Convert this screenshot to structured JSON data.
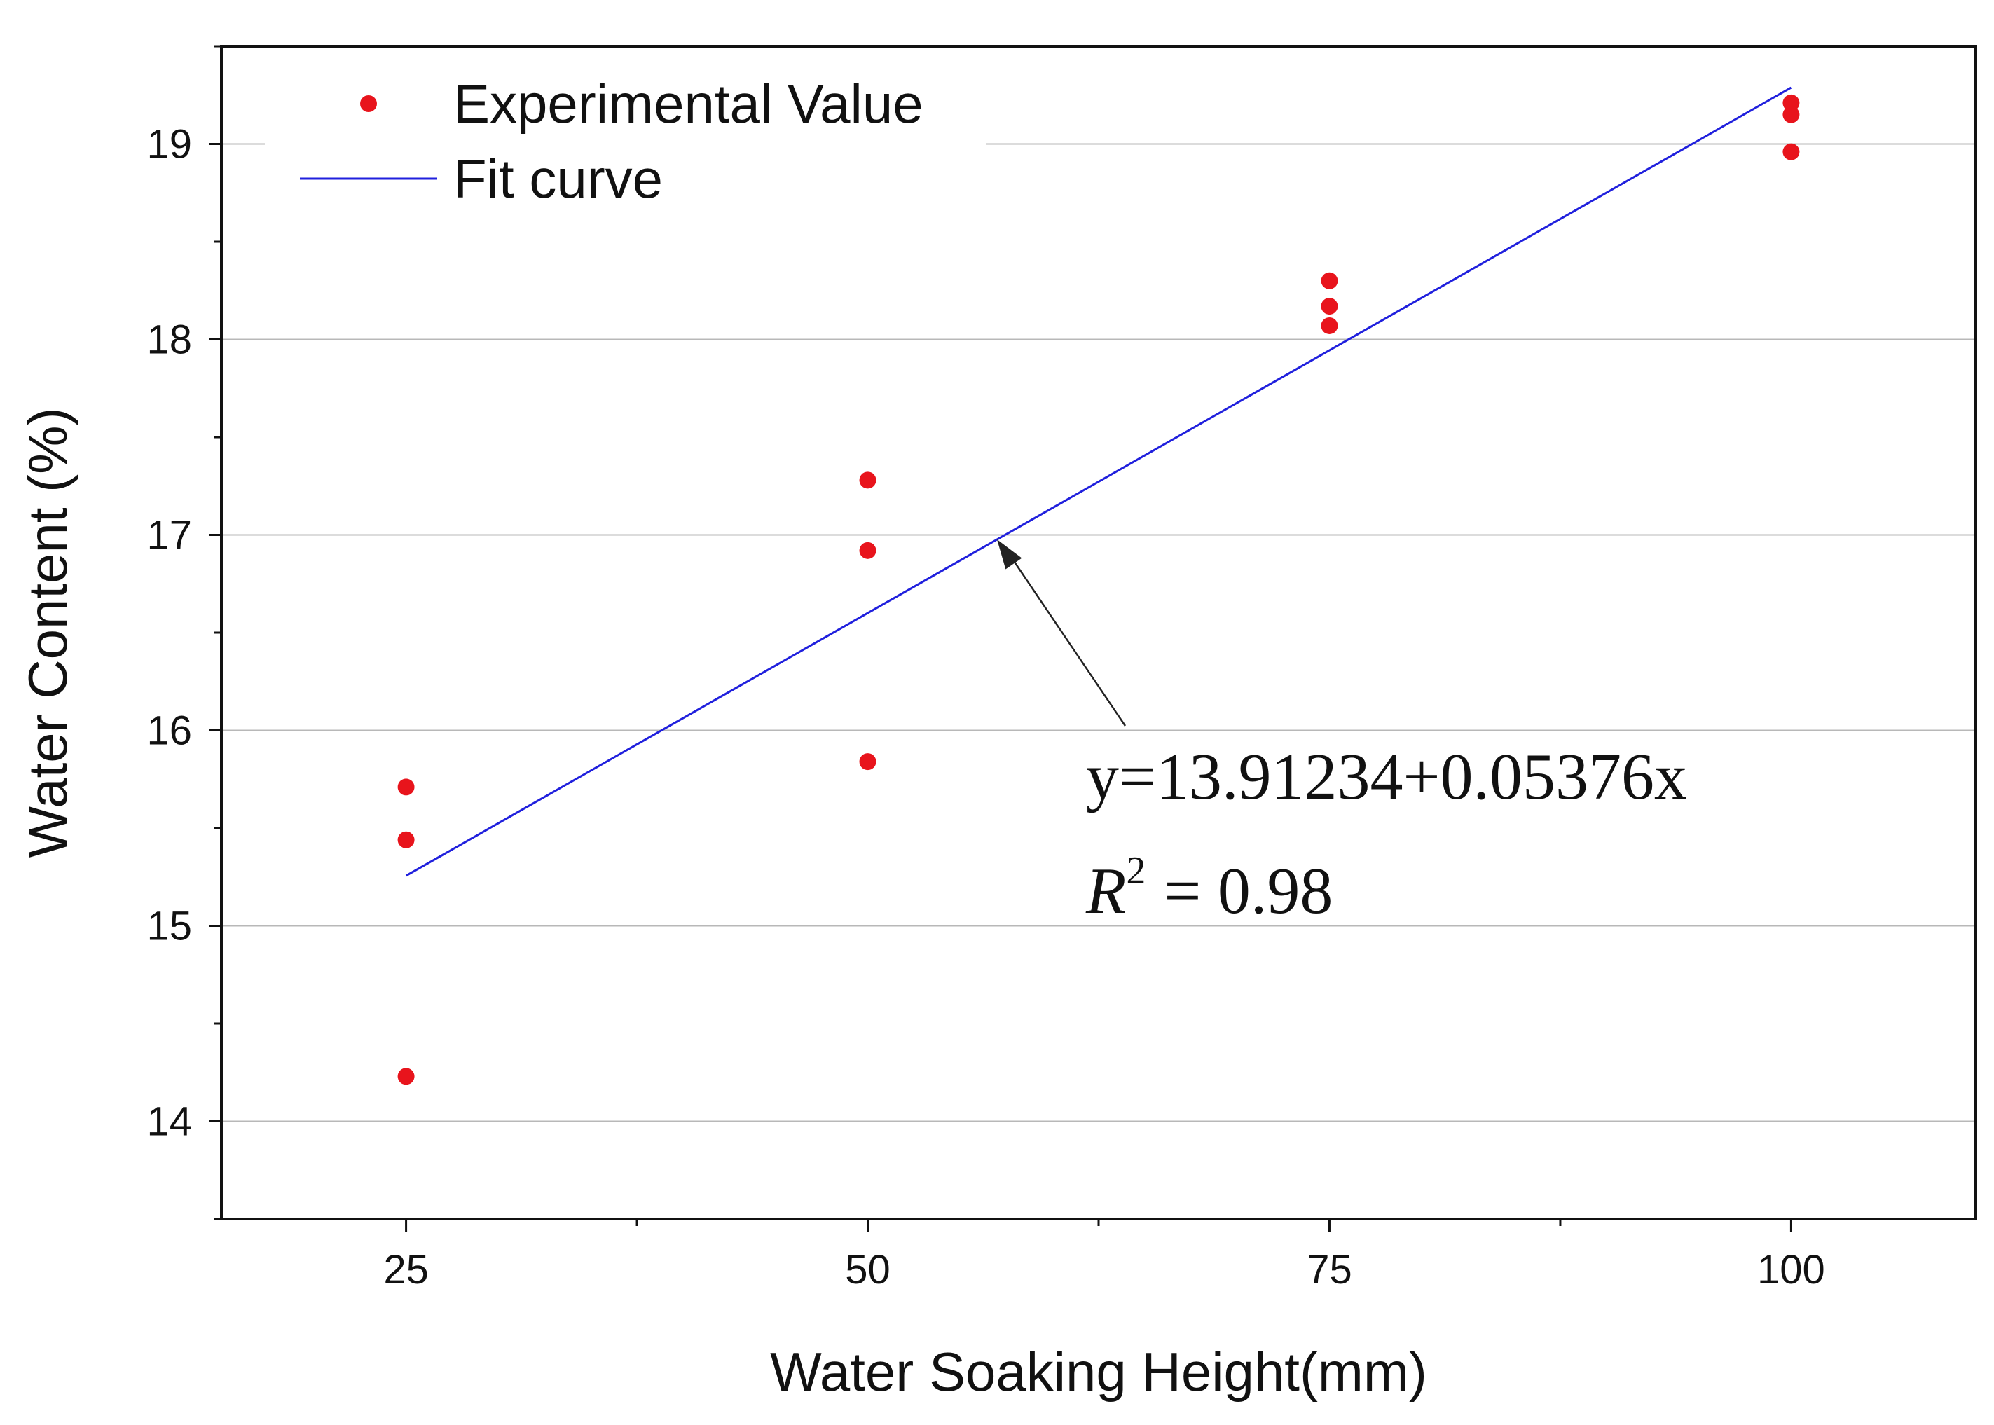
{
  "colors": {
    "point": "#e8141c",
    "fit_line": "#2020dd",
    "grid": "#b8b8b8",
    "axis": "#111111",
    "arrow": "#222222"
  },
  "chart_data": {
    "type": "scatter",
    "title": "",
    "xlabel": "Water Soaking Height(mm)",
    "ylabel": "Water Content (%)",
    "xlim": [
      15,
      110
    ],
    "ylim": [
      13.5,
      19.5
    ],
    "xticks": [
      25,
      50,
      75,
      100
    ],
    "yticks": [
      14,
      15,
      16,
      17,
      18,
      19
    ],
    "grid": "horizontal",
    "legend": {
      "placement": "top-left",
      "entries": [
        {
          "label": "Experimental Value",
          "kind": "marker"
        },
        {
          "label": "Fit curve",
          "kind": "line"
        }
      ]
    },
    "series": [
      {
        "name": "Experimental Value",
        "type": "scatter",
        "points": [
          {
            "x": 25,
            "y": 15.71
          },
          {
            "x": 25,
            "y": 15.44
          },
          {
            "x": 25,
            "y": 14.23
          },
          {
            "x": 50,
            "y": 17.28
          },
          {
            "x": 50,
            "y": 16.92
          },
          {
            "x": 50,
            "y": 15.84
          },
          {
            "x": 75,
            "y": 18.3
          },
          {
            "x": 75,
            "y": 18.17
          },
          {
            "x": 75,
            "y": 18.07
          },
          {
            "x": 100,
            "y": 19.21
          },
          {
            "x": 100,
            "y": 19.15
          },
          {
            "x": 100,
            "y": 18.96
          }
        ]
      },
      {
        "name": "Fit curve",
        "type": "line",
        "intercept": 13.91234,
        "slope": 0.05376,
        "x_range": [
          25,
          100
        ]
      }
    ],
    "annotation": {
      "equation": "y=13.91234+0.05376x",
      "r2_symbol": "R",
      "r2_power": "2",
      "r2_value": "= 0.98",
      "arrow_target_x": 57
    }
  }
}
